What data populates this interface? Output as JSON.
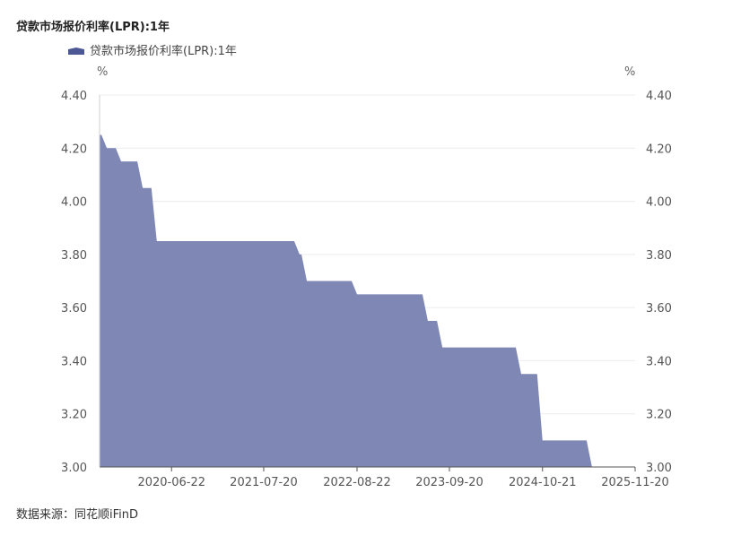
{
  "chart_data": {
    "type": "area",
    "title": "贷款市场报价利率(LPR):1年",
    "legend_position": "top-left",
    "color": "#7f88b5",
    "legend_color": "#4c5796",
    "grid": true,
    "y_unit_left": "%",
    "y_unit_right": "%",
    "ylim": [
      3.0,
      4.4
    ],
    "yticks": [
      "3.00",
      "3.20",
      "3.40",
      "3.60",
      "3.80",
      "4.00",
      "4.20",
      "4.40"
    ],
    "xlim": [
      "2019-08-20",
      "2025-11-20"
    ],
    "xticks": [
      "2020-06-22",
      "2021-07-20",
      "2022-08-22",
      "2023-09-20",
      "2024-10-21",
      "2025-11-20"
    ],
    "series": [
      {
        "name": "贷款市场报价利率(LPR):1年",
        "x": [
          "2019-08-20",
          "2019-09-20",
          "2019-11-20",
          "2020-02-20",
          "2020-04-20",
          "2021-12-20",
          "2022-01-20",
          "2022-08-22",
          "2023-06-20",
          "2023-08-21",
          "2024-07-22",
          "2024-10-21",
          "2025-05-20",
          "2025-11-20"
        ],
        "y": [
          4.25,
          4.2,
          4.15,
          4.05,
          3.85,
          3.8,
          3.7,
          3.65,
          3.55,
          3.45,
          3.35,
          3.1,
          3.0,
          3.0
        ]
      }
    ]
  },
  "source": "数据来源：同花顺iFinD"
}
